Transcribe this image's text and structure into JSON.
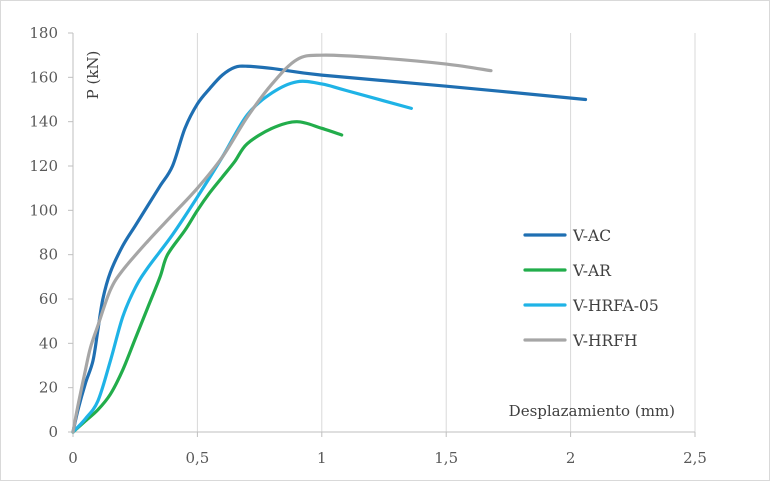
{
  "chart_data": {
    "type": "line",
    "title": "",
    "xlabel": "Desplazamiento (mm)",
    "ylabel": "P (kN)",
    "xlim": [
      0,
      2.5
    ],
    "ylim": [
      0,
      180
    ],
    "x_ticks": [
      0,
      0.5,
      1,
      1.5,
      2,
      2.5
    ],
    "x_tick_labels": [
      "0",
      "0,5",
      "1",
      "1,5",
      "2",
      "2,5"
    ],
    "y_ticks": [
      0,
      20,
      40,
      60,
      80,
      100,
      120,
      140,
      160,
      180
    ],
    "y_tick_labels": [
      "0",
      "20",
      "40",
      "60",
      "80",
      "100",
      "120",
      "140",
      "160",
      "180"
    ],
    "grid": "vertical",
    "legend_position": "right",
    "series": [
      {
        "name": "V-AC",
        "color": "#1f6fb2",
        "points": [
          [
            0,
            0
          ],
          [
            0.02,
            10
          ],
          [
            0.05,
            22
          ],
          [
            0.08,
            32
          ],
          [
            0.1,
            46
          ],
          [
            0.12,
            60
          ],
          [
            0.15,
            72
          ],
          [
            0.2,
            84
          ],
          [
            0.25,
            93
          ],
          [
            0.3,
            102
          ],
          [
            0.35,
            111
          ],
          [
            0.4,
            120
          ],
          [
            0.45,
            137
          ],
          [
            0.5,
            148
          ],
          [
            0.55,
            155
          ],
          [
            0.6,
            161
          ],
          [
            0.65,
            164.5
          ],
          [
            0.7,
            165
          ],
          [
            0.8,
            164
          ],
          [
            1.0,
            161
          ],
          [
            1.5,
            156
          ],
          [
            2.06,
            150
          ]
        ]
      },
      {
        "name": "V-AR",
        "color": "#22ad4b",
        "points": [
          [
            0,
            0
          ],
          [
            0.05,
            5
          ],
          [
            0.1,
            10
          ],
          [
            0.15,
            17
          ],
          [
            0.2,
            28
          ],
          [
            0.25,
            42
          ],
          [
            0.3,
            56
          ],
          [
            0.35,
            70
          ],
          [
            0.38,
            80
          ],
          [
            0.45,
            91
          ],
          [
            0.5,
            100
          ],
          [
            0.55,
            108
          ],
          [
            0.6,
            115
          ],
          [
            0.65,
            122
          ],
          [
            0.7,
            130
          ],
          [
            0.8,
            137
          ],
          [
            0.9,
            140
          ],
          [
            1.0,
            137
          ],
          [
            1.08,
            134
          ]
        ]
      },
      {
        "name": "V-HRFA-05",
        "color": "#1fb3e6",
        "points": [
          [
            0,
            0
          ],
          [
            0.05,
            6
          ],
          [
            0.1,
            14
          ],
          [
            0.15,
            32
          ],
          [
            0.2,
            52
          ],
          [
            0.25,
            65
          ],
          [
            0.3,
            74
          ],
          [
            0.4,
            89
          ],
          [
            0.5,
            106
          ],
          [
            0.6,
            124
          ],
          [
            0.7,
            143
          ],
          [
            0.8,
            153
          ],
          [
            0.9,
            158
          ],
          [
            1.0,
            157
          ],
          [
            1.1,
            154
          ],
          [
            1.36,
            146
          ]
        ]
      },
      {
        "name": "V-HRFH",
        "color": "#a6a6a6",
        "points": [
          [
            0,
            0
          ],
          [
            0.02,
            12
          ],
          [
            0.05,
            28
          ],
          [
            0.07,
            38
          ],
          [
            0.1,
            48
          ],
          [
            0.15,
            64
          ],
          [
            0.2,
            73
          ],
          [
            0.3,
            86
          ],
          [
            0.4,
            98
          ],
          [
            0.5,
            110
          ],
          [
            0.6,
            124
          ],
          [
            0.7,
            142
          ],
          [
            0.8,
            157
          ],
          [
            0.9,
            168
          ],
          [
            1.0,
            170
          ],
          [
            1.2,
            169
          ],
          [
            1.5,
            166
          ],
          [
            1.68,
            163
          ]
        ]
      }
    ]
  }
}
